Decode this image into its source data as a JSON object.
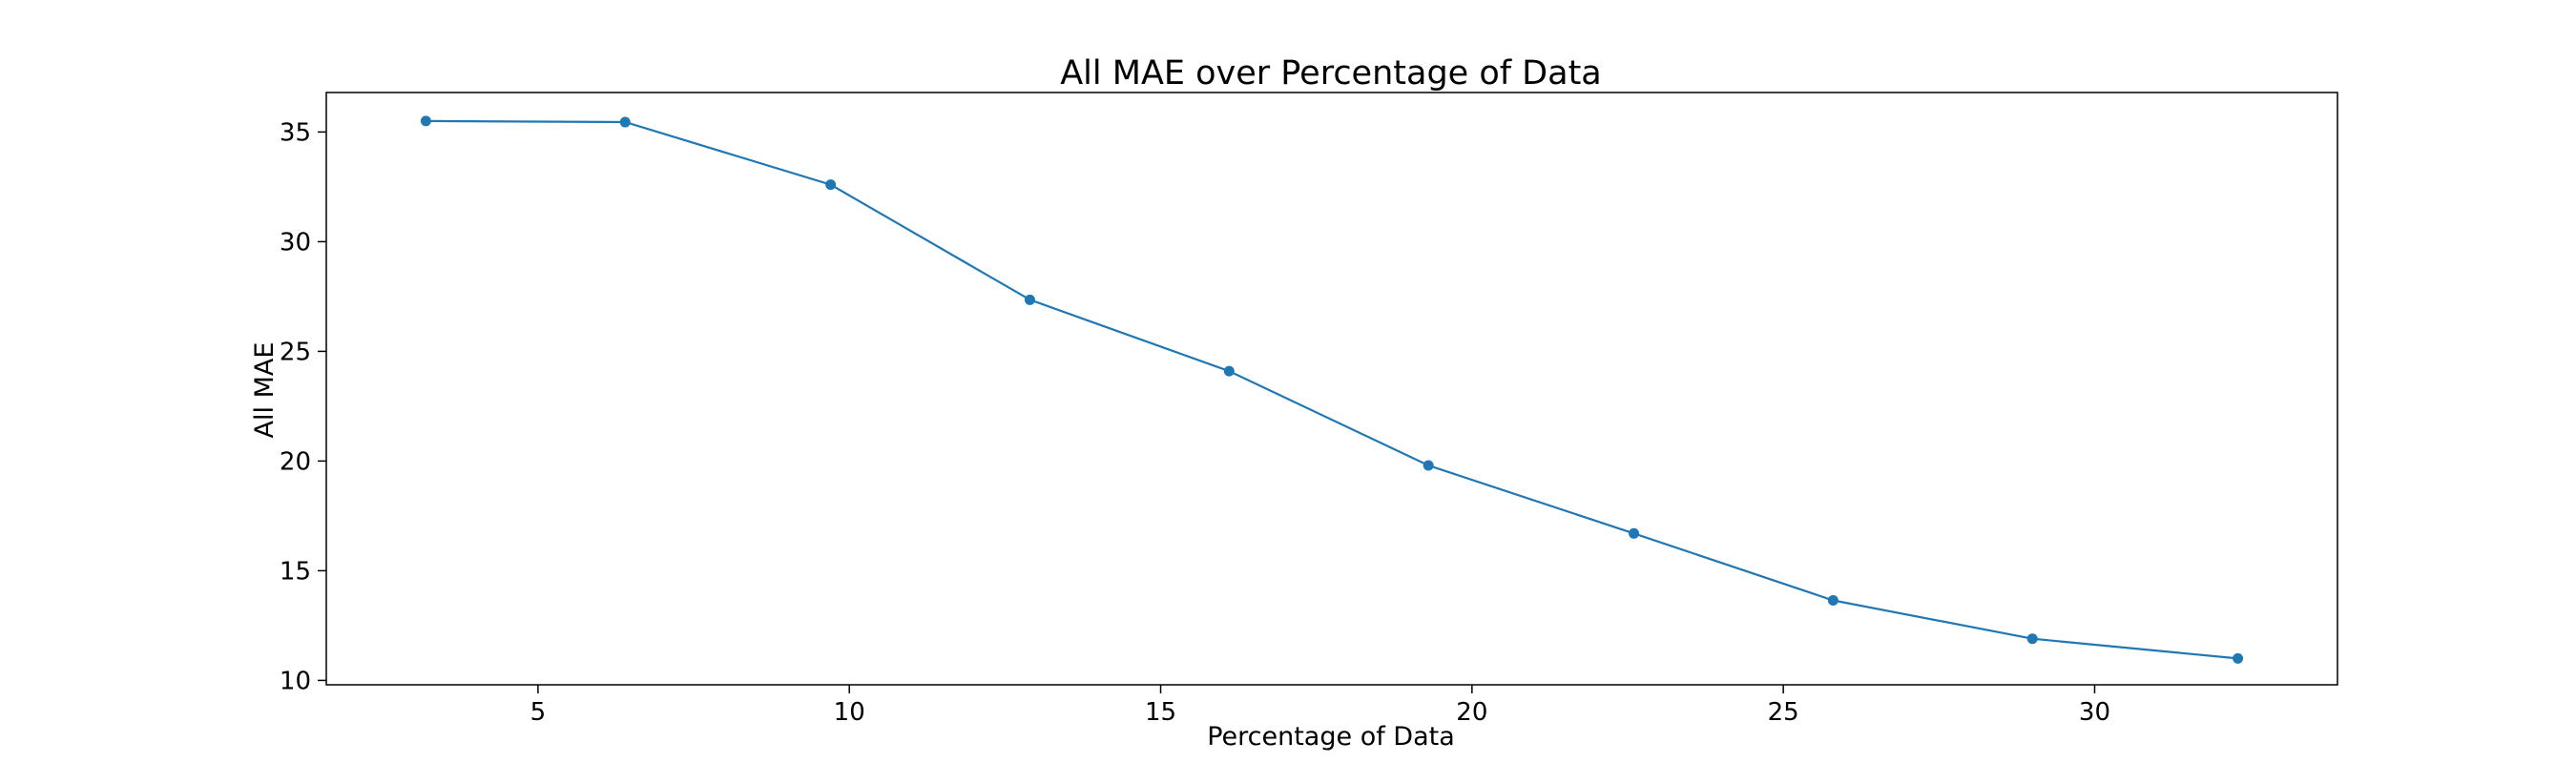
{
  "chart_data": {
    "type": "line",
    "title": "All MAE over Percentage of Data",
    "xlabel": "Percentage of Data",
    "ylabel": "All MAE",
    "xlim": [
      1.6,
      33.9
    ],
    "ylim": [
      9.8,
      36.8
    ],
    "xticks": [
      5,
      10,
      15,
      20,
      25,
      30
    ],
    "yticks": [
      10,
      15,
      20,
      25,
      30,
      35
    ],
    "grid": false,
    "series": [
      {
        "color": "#1f77b4",
        "marker": "circle",
        "points": [
          {
            "x": 3.2,
            "y": 35.5
          },
          {
            "x": 6.4,
            "y": 35.45
          },
          {
            "x": 9.7,
            "y": 32.6
          },
          {
            "x": 12.9,
            "y": 27.35
          },
          {
            "x": 16.1,
            "y": 24.1
          },
          {
            "x": 19.3,
            "y": 19.8
          },
          {
            "x": 22.6,
            "y": 16.7
          },
          {
            "x": 25.8,
            "y": 13.65
          },
          {
            "x": 29.0,
            "y": 11.9
          },
          {
            "x": 32.3,
            "y": 11.0
          }
        ]
      }
    ]
  }
}
